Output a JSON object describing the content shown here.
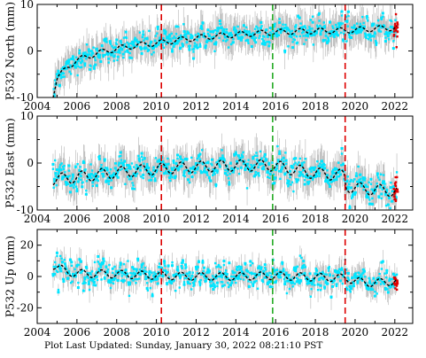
{
  "footer": {
    "text": "Plot Last Updated:   Sunday, January 30, 2022 08:21:10 PST"
  },
  "colors": {
    "errorbar": "#b4b4b4",
    "observations": "#00e5ff",
    "final_points": "#e00000",
    "model": "#000000",
    "equipment_change": "#dd0000",
    "earthquake": "#22aa22"
  },
  "chart_data": [
    {
      "type": "scatter",
      "ylabel": "P532 North (mm)",
      "xlim": [
        2004,
        2022.9
      ],
      "ylim": [
        -10,
        10
      ],
      "yticks": [
        -10,
        0,
        10
      ],
      "xticks": [
        2004,
        2006,
        2008,
        2010,
        2012,
        2014,
        2016,
        2018,
        2020,
        2022
      ],
      "show_xtick_labels": true,
      "event_lines": [
        {
          "x": 2010.25,
          "color": "red"
        },
        {
          "x": 2015.85,
          "color": "green"
        },
        {
          "x": 2019.5,
          "color": "red"
        }
      ],
      "model_anchors": [
        [
          2004.8,
          -9.5
        ],
        [
          2005.0,
          -6.0
        ],
        [
          2005.5,
          -3.5
        ],
        [
          2006.0,
          -2.0
        ],
        [
          2007.0,
          -0.5
        ],
        [
          2008.0,
          0.5
        ],
        [
          2009.0,
          1.2
        ],
        [
          2010.25,
          1.8
        ],
        [
          2011.0,
          2.3
        ],
        [
          2012.0,
          2.8
        ],
        [
          2013.0,
          3.2
        ],
        [
          2014.0,
          3.5
        ],
        [
          2015.0,
          3.8
        ],
        [
          2015.85,
          4.0
        ],
        [
          2017.0,
          4.2
        ],
        [
          2018.0,
          4.3
        ],
        [
          2019.5,
          4.4
        ],
        [
          2020.0,
          4.5
        ],
        [
          2021.0,
          4.8
        ],
        [
          2022.1,
          5.0
        ]
      ],
      "seasonal_amplitude": 0.6,
      "scatter_sd": 1.3,
      "errorbar_halfwidth": 3.0
    },
    {
      "type": "scatter",
      "ylabel": "P532 East (mm)",
      "xlim": [
        2004,
        2022.9
      ],
      "ylim": [
        -10,
        10
      ],
      "yticks": [
        -10,
        0,
        10
      ],
      "xticks": [
        2004,
        2006,
        2008,
        2010,
        2012,
        2014,
        2016,
        2018,
        2020,
        2022
      ],
      "show_xtick_labels": true,
      "event_lines": [
        {
          "x": 2010.25,
          "color": "red"
        },
        {
          "x": 2015.85,
          "color": "green"
        },
        {
          "x": 2019.5,
          "color": "red"
        }
      ],
      "model_anchors": [
        [
          2004.8,
          -3.5
        ],
        [
          2006.0,
          -3.0
        ],
        [
          2008.0,
          -2.0
        ],
        [
          2010.25,
          -1.2
        ],
        [
          2012.0,
          -0.8
        ],
        [
          2014.0,
          -0.5
        ],
        [
          2015.85,
          -0.5
        ],
        [
          2017.0,
          -1.5
        ],
        [
          2018.0,
          -2.2
        ],
        [
          2019.49,
          -2.6
        ],
        [
          2019.51,
          -5.0
        ],
        [
          2020.5,
          -5.5
        ],
        [
          2021.0,
          -5.7
        ],
        [
          2022.1,
          -6.0
        ]
      ],
      "seasonal_amplitude": 1.2,
      "scatter_sd": 1.5,
      "errorbar_halfwidth": 3.0
    },
    {
      "type": "scatter",
      "ylabel": "P532 Up (mm)",
      "xlim": [
        2004,
        2022.9
      ],
      "ylim": [
        -30,
        30
      ],
      "yticks": [
        -20,
        0,
        20
      ],
      "xticks": [
        2004,
        2006,
        2008,
        2010,
        2012,
        2014,
        2016,
        2018,
        2020,
        2022
      ],
      "show_xtick_labels": true,
      "event_lines": [
        {
          "x": 2010.25,
          "color": "red"
        },
        {
          "x": 2015.85,
          "color": "green"
        },
        {
          "x": 2019.5,
          "color": "red"
        }
      ],
      "model_anchors": [
        [
          2004.8,
          7.0
        ],
        [
          2005.5,
          3.0
        ],
        [
          2006.0,
          2.0
        ],
        [
          2008.0,
          1.5
        ],
        [
          2010.25,
          0.5
        ],
        [
          2012.0,
          0.0
        ],
        [
          2014.0,
          0.0
        ],
        [
          2015.85,
          0.5
        ],
        [
          2017.0,
          0.0
        ],
        [
          2018.0,
          -0.5
        ],
        [
          2019.5,
          -1.0
        ],
        [
          2020.5,
          -4.0
        ],
        [
          2021.0,
          -4.0
        ],
        [
          2022.1,
          -3.0
        ]
      ],
      "seasonal_amplitude": 2.5,
      "scatter_sd": 4.0,
      "errorbar_halfwidth": 6.0
    }
  ]
}
